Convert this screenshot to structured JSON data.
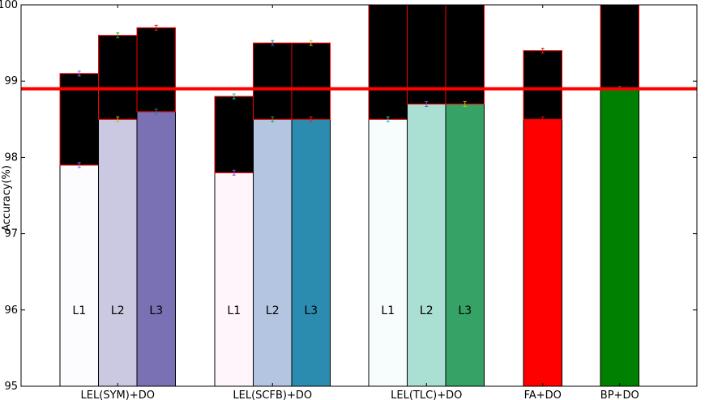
{
  "chart_data": {
    "type": "bar",
    "title": "",
    "xlabel": "",
    "ylabel": "Accuracy(%)",
    "ylim": [
      95,
      100
    ],
    "yticks": [
      95,
      96,
      97,
      98,
      99,
      100
    ],
    "grid": false,
    "reference_line": {
      "value": 98.9,
      "color": "#ff0000"
    },
    "groups": [
      {
        "label": "LEL(SYM)+DO",
        "bars": [
          {
            "label": "L1",
            "base": 97.9,
            "top": 99.1,
            "color": "#fcfbfd",
            "err_base": "#7b68ee",
            "err_top": "#7b68ee"
          },
          {
            "label": "L2",
            "base": 98.5,
            "top": 99.6,
            "color": "#cbc9e2",
            "err_base": "#bcbd22",
            "err_top": "#2ca02c"
          },
          {
            "label": "L3",
            "base": 98.6,
            "top": 99.7,
            "color": "#7a70b4",
            "err_base": "#1f77b4",
            "err_top": "#d62728"
          }
        ]
      },
      {
        "label": "LEL(SCFB)+DO",
        "bars": [
          {
            "label": "L1",
            "base": 97.8,
            "top": 98.8,
            "color": "#fff5fb",
            "err_base": "#6a5acd",
            "err_top": "#17becf"
          },
          {
            "label": "L2",
            "base": 98.5,
            "top": 99.5,
            "color": "#b3c5e0",
            "err_base": "#2ca02c",
            "err_top": "#1f77b4"
          },
          {
            "label": "L3",
            "base": 98.5,
            "top": 99.5,
            "color": "#2b8cb0",
            "err_base": "#d62728",
            "err_top": "#bcbd22"
          }
        ]
      },
      {
        "label": "LEL(TLC)+DO",
        "bars": [
          {
            "label": "L1",
            "base": 98.5,
            "top": 100.0,
            "color": "#f7fcfd",
            "err_base": "#17becf",
            "err_top": "#17becf"
          },
          {
            "label": "L2",
            "base": 98.7,
            "top": 100.0,
            "color": "#aadfd3",
            "err_base": "#6a5acd",
            "err_top": "#6a5acd"
          },
          {
            "label": "L3",
            "base": 98.7,
            "top": 100.0,
            "color": "#36a265",
            "err_base": "#bcbd22",
            "err_top": "#bcbd22"
          }
        ]
      },
      {
        "label": "FA+DO",
        "bars": [
          {
            "label": "",
            "base": 98.5,
            "top": 99.4,
            "color": "#ff0000",
            "err_base": "#ff0000",
            "err_top": "#d62728"
          }
        ]
      },
      {
        "label": "BP+DO",
        "bars": [
          {
            "label": "",
            "base": 98.9,
            "top": 100.0,
            "color": "#008000",
            "err_base": "#008000",
            "err_top": "#008000"
          }
        ]
      }
    ]
  }
}
